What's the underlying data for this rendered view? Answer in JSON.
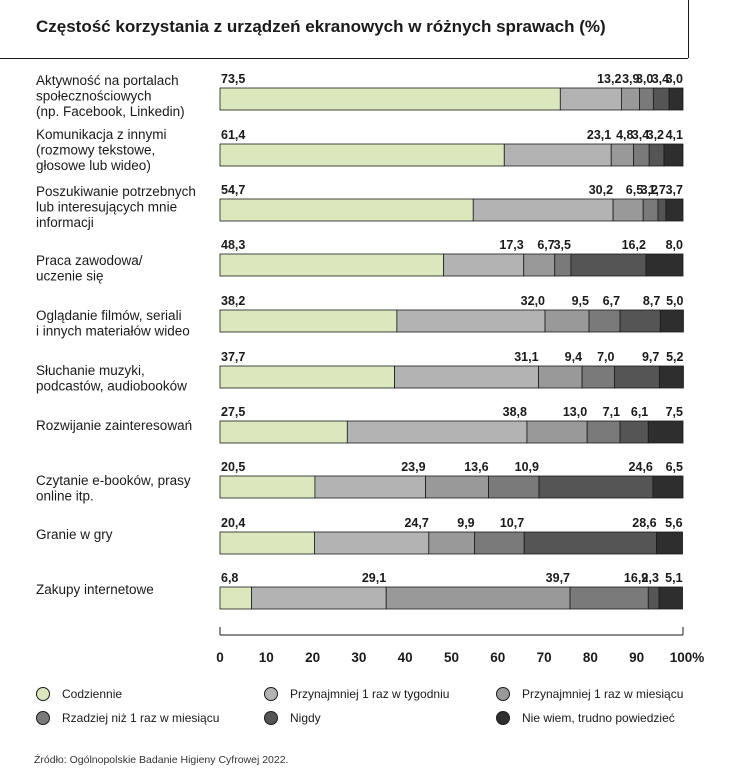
{
  "title": "Częstość korzystania z urządzeń ekranowych w różnych sprawach (%)",
  "source": "Źródło: Ogólnopolskie Badanie Higieny Cyfrowej 2022.",
  "chart_data": {
    "type": "bar",
    "orientation": "horizontal",
    "stacked": true,
    "title": "Częstość korzystania z urządzeń ekranowych w różnych sprawach (%)",
    "xlim": [
      0,
      100
    ],
    "x_ticks": [
      "0",
      "10",
      "20",
      "30",
      "40",
      "50",
      "60",
      "70",
      "80",
      "90",
      "100%"
    ],
    "legend_position": "bottom",
    "categories": [
      [
        "Aktywność na portalach",
        "społecznościowych",
        "(np. Facebook, Linkedin)"
      ],
      [
        "Komunikacja z innymi",
        "(rozmowy tekstowe,",
        "głosowe lub wideo)"
      ],
      [
        "Poszukiwanie potrzebnych",
        "lub interesujących mnie",
        "informacji"
      ],
      [
        "Praca zawodowa/",
        "uczenie się"
      ],
      [
        "Oglądanie filmów, seriali",
        "i innych materiałów wideo"
      ],
      [
        "Słuchanie muzyki,",
        "podcastów, audiobooków"
      ],
      [
        "Rozwijanie zainteresowań"
      ],
      [
        "Czytanie e-booków, prasy",
        "online itp."
      ],
      [
        "Granie w gry"
      ],
      [
        "Zakupy internetowe"
      ]
    ],
    "series": [
      {
        "name": "Codziennie",
        "color": "#dbe8be",
        "values": [
          73.5,
          61.4,
          54.7,
          48.3,
          38.2,
          37.7,
          27.5,
          20.5,
          20.4,
          6.8
        ]
      },
      {
        "name": "Przynajmniej 1 raz w tygodniu",
        "color": "#b3b3b3",
        "values": [
          13.2,
          23.1,
          30.2,
          17.3,
          32.0,
          31.1,
          38.8,
          23.9,
          24.7,
          29.1
        ]
      },
      {
        "name": "Przynajmniej 1 raz w miesiącu",
        "color": "#999999",
        "values": [
          3.9,
          4.8,
          6.5,
          6.7,
          9.5,
          9.4,
          13.0,
          13.6,
          9.9,
          39.7
        ]
      },
      {
        "name": "Rzadziej niż 1 raz w miesiącu",
        "color": "#7a7a7a",
        "values": [
          3.0,
          3.4,
          3.2,
          3.5,
          6.7,
          7.0,
          7.1,
          10.9,
          10.7,
          16.9
        ]
      },
      {
        "name": "Nigdy",
        "color": "#555555",
        "values": [
          3.4,
          3.2,
          1.7,
          16.2,
          8.7,
          9.7,
          6.1,
          24.6,
          28.6,
          2.3
        ]
      },
      {
        "name": "Nie wiem, trudno powiedzieć",
        "color": "#2e2e2e",
        "values": [
          3.0,
          4.1,
          3.7,
          8.0,
          5.0,
          5.2,
          7.5,
          6.5,
          5.6,
          5.1
        ]
      }
    ],
    "value_labels": [
      [
        "73,5",
        "13,2",
        "3,9",
        "3,0",
        "3,4",
        "3,0"
      ],
      [
        "61,4",
        "23,1",
        "4,8",
        "3,4",
        "3,2",
        "4,1"
      ],
      [
        "54,7",
        "30,2",
        "6,5",
        "3,2",
        "1,7",
        "3,7"
      ],
      [
        "48,3",
        "17,3",
        "6,7",
        "3,5",
        "16,2",
        "8,0"
      ],
      [
        "38,2",
        "32,0",
        "9,5",
        "6,7",
        "8,7",
        "5,0"
      ],
      [
        "37,7",
        "31,1",
        "9,4",
        "7,0",
        "9,7",
        "5,2"
      ],
      [
        "27,5",
        "38,8",
        "13,0",
        "7,1",
        "6,1",
        "7,5"
      ],
      [
        "20,5",
        "23,9",
        "13,6",
        "10,9",
        "24,6",
        "6,5"
      ],
      [
        "20,4",
        "24,7",
        "9,9",
        "10,7",
        "28,6",
        "5,6"
      ],
      [
        "6,8",
        "29,1",
        "39,7",
        "16,9",
        "2,3",
        "5,1"
      ]
    ]
  }
}
